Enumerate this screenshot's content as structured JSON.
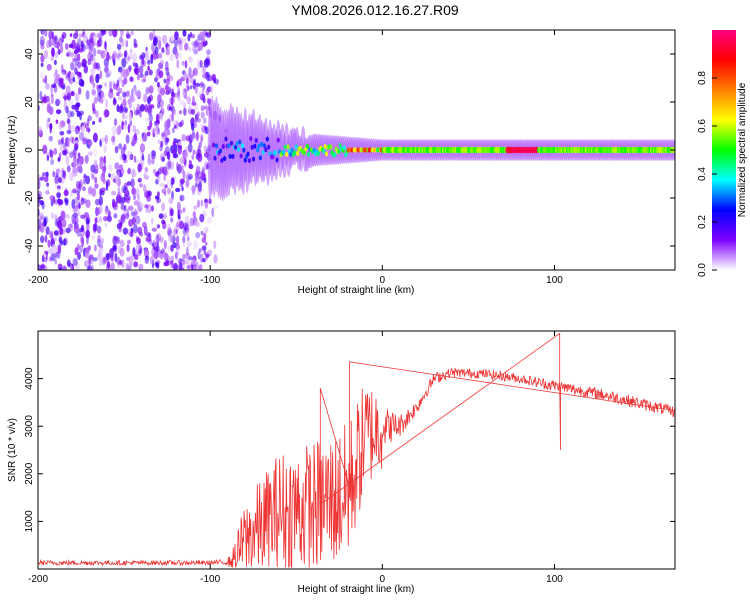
{
  "title": "YM08.2026.012.16.27.R09",
  "chart_data": [
    {
      "type": "heatmap",
      "name": "spectrogram",
      "xlabel": "Height of straight line (km)",
      "ylabel": "Frequency (Hz)",
      "xlim": [
        -200,
        170
      ],
      "ylim": [
        -50,
        50
      ],
      "xticks": [
        -200,
        -100,
        0,
        100
      ],
      "yticks": [
        -40,
        -20,
        0,
        20,
        40
      ],
      "colorbar": {
        "label": "Normalized spectral amplitude",
        "range": [
          0,
          1
        ],
        "ticks": [
          "0.0",
          "0.2",
          "0.4",
          "0.6",
          "0.8"
        ],
        "colors": [
          "#ffffff",
          "#7f00ff",
          "#0000ff",
          "#00ffff",
          "#00ff00",
          "#ffff00",
          "#ff8000",
          "#ff0000",
          "#ff0080"
        ]
      },
      "regions": [
        {
          "x": [
            -200,
            -100
          ],
          "description": "noise",
          "level": 0.12
        },
        {
          "x": [
            -100,
            -50
          ],
          "description": "onset",
          "level": 0.3
        },
        {
          "x": [
            -50,
            0
          ],
          "description": "narrowing band",
          "level": 0.55
        },
        {
          "x": [
            0,
            170
          ],
          "description": "stable band near 0 Hz",
          "level": 0.55
        },
        {
          "x": [
            72,
            90
          ],
          "description": "peak band",
          "level": 1.0
        }
      ]
    },
    {
      "type": "line",
      "name": "snr",
      "xlabel": "Height of straight line (km)",
      "ylabel": "SNR (10 * v/v)",
      "xlim": [
        -200,
        170
      ],
      "ylim": [
        0,
        5000
      ],
      "xticks": [
        -200,
        -100,
        0,
        100
      ],
      "yticks": [
        1000,
        2000,
        3000,
        4000
      ],
      "color": "#ee3333",
      "series_envelope": [
        {
          "x": -200,
          "mean": 130,
          "noise": 100
        },
        {
          "x": -100,
          "mean": 130,
          "noise": 100
        },
        {
          "x": -88,
          "mean": 150,
          "noise": 120
        },
        {
          "x": -80,
          "mean": 600,
          "noise": 800
        },
        {
          "x": -60,
          "mean": 1200,
          "noise": 1300
        },
        {
          "x": -40,
          "mean": 1300,
          "noise": 1400
        },
        {
          "x": -20,
          "mean": 1600,
          "noise": 1500
        },
        {
          "x": -10,
          "mean": 2800,
          "noise": 1200
        },
        {
          "x": 0,
          "mean": 3000,
          "noise": 900
        },
        {
          "x": 10,
          "mean": 3000,
          "noise": 500
        },
        {
          "x": 20,
          "mean": 3400,
          "noise": 300
        },
        {
          "x": 30,
          "mean": 4000,
          "noise": 250
        },
        {
          "x": 40,
          "mean": 4130,
          "noise": 200
        },
        {
          "x": 60,
          "mean": 4100,
          "noise": 200
        },
        {
          "x": 80,
          "mean": 4000,
          "noise": 200
        },
        {
          "x": 100,
          "mean": 3850,
          "noise": 250
        },
        {
          "x": 130,
          "mean": 3650,
          "noise": 250
        },
        {
          "x": 170,
          "mean": 3300,
          "noise": 250
        }
      ],
      "spikes": [
        {
          "x": -19,
          "y": 4350
        },
        {
          "x": -36,
          "y": 3800
        },
        {
          "x": 103,
          "y": 4950
        },
        {
          "x": 103.5,
          "y": 2500
        }
      ]
    }
  ]
}
